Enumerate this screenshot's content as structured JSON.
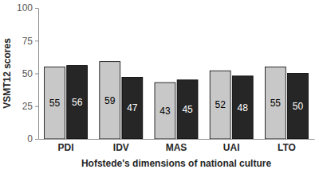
{
  "chart_data": {
    "type": "bar",
    "categories": [
      "PDI",
      "IDV",
      "MAS",
      "UAI",
      "LTO"
    ],
    "series": [
      {
        "color": "#c8c8c8",
        "values": [
          55,
          59,
          43,
          52,
          55
        ]
      },
      {
        "color": "#262626",
        "values": [
          56,
          47,
          45,
          48,
          50
        ]
      }
    ],
    "x_label": "Hofstede's dimensions of national culture",
    "y_label": "VSMT12 scores",
    "ylim": [
      0,
      100
    ],
    "yticks": [
      0,
      25,
      50,
      75,
      100
    ],
    "grid": false,
    "data_labels": true
  }
}
